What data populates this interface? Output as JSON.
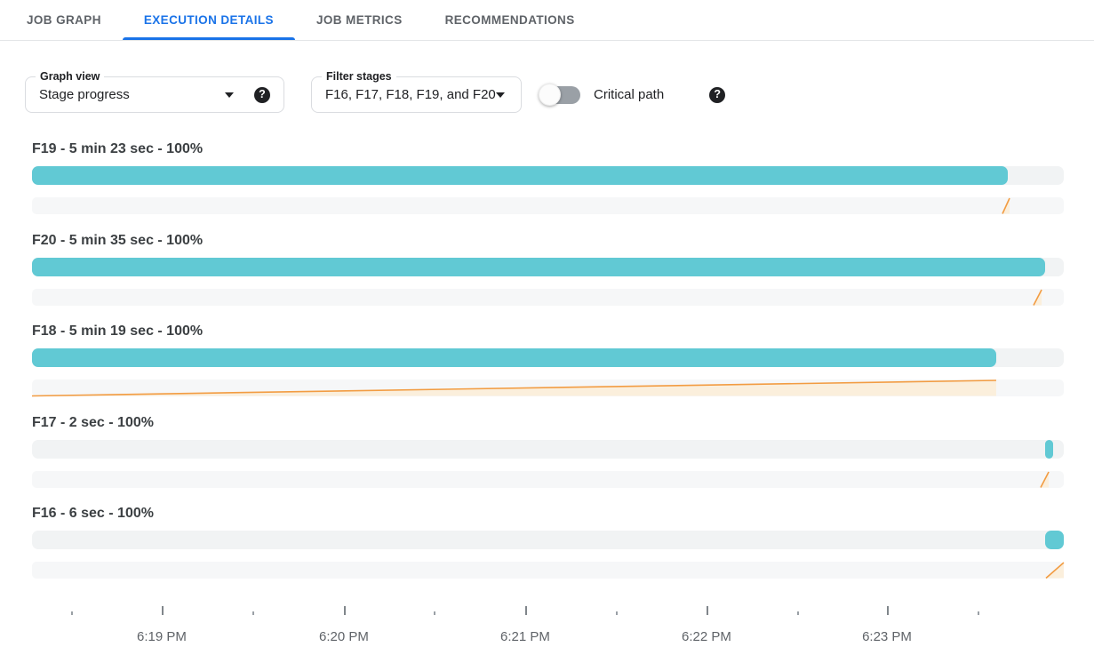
{
  "header": {
    "tabs": [
      {
        "label": "JOB GRAPH",
        "active": false
      },
      {
        "label": "EXECUTION DETAILS",
        "active": true
      },
      {
        "label": "JOB METRICS",
        "active": false
      },
      {
        "label": "RECOMMENDATIONS",
        "active": false
      }
    ]
  },
  "controls": {
    "graph_view": {
      "label": "Graph view",
      "value": "Stage progress"
    },
    "filter_stages": {
      "label": "Filter stages",
      "value": "F16, F17, F18, F19, and F20"
    },
    "critical_path": {
      "label": "Critical path",
      "enabled": false
    },
    "help_icon_glyph": "?"
  },
  "colors": {
    "accent_blue": "#1a73e8",
    "progress_teal": "#61c9d4",
    "track_gray": "#f1f3f4",
    "ramp_line_orange": "#f29c42",
    "ramp_fill_cream": "#fbefdc",
    "toggle_track_gray": "#9aa0a6"
  },
  "chart_data": {
    "type": "bar",
    "title": "Stage progress",
    "subtitle": "Dataflow execution details: per-stage progress bars over time with worker-activity ramps",
    "legend_position": "none",
    "grid": false,
    "stages": [
      {
        "id": "F19",
        "title": "F19 - 5 min 23 sec - 100%",
        "duration": "5 min 23 sec",
        "percent": 100,
        "progress_bar": {
          "start_pct": 0,
          "end_pct": 94.57
        },
        "activity_ramp": {
          "start_pct": 94.06,
          "end_pct": 94.75
        }
      },
      {
        "id": "F20",
        "title": "F20 - 5 min 35 sec - 100%",
        "duration": "5 min 35 sec",
        "percent": 100,
        "progress_bar": {
          "start_pct": 0,
          "end_pct": 98.19
        },
        "activity_ramp": {
          "start_pct": 97.07,
          "end_pct": 97.85
        }
      },
      {
        "id": "F18",
        "title": "F18 - 5 min 19 sec - 100%",
        "duration": "5 min 19 sec",
        "percent": 100,
        "progress_bar": {
          "start_pct": 0,
          "end_pct": 93.45
        },
        "activity_ramp": {
          "start_pct": 0,
          "end_pct": 93.45
        }
      },
      {
        "id": "F17",
        "title": "F17 - 2 sec - 100%",
        "duration": "2 sec",
        "percent": 100,
        "progress_bar": {
          "start_pct": 98.19,
          "end_pct": 98.97
        },
        "activity_ramp": {
          "start_pct": 97.76,
          "end_pct": 98.54
        }
      },
      {
        "id": "F16",
        "title": "F16 - 6 sec - 100%",
        "duration": "6 sec",
        "percent": 100,
        "progress_bar": {
          "start_pct": 98.19,
          "end_pct": 100
        },
        "activity_ramp": {
          "start_pct": 98.28,
          "end_pct": 100
        }
      }
    ],
    "x_axis": {
      "unit": "time of day",
      "major_ticks": [
        {
          "pos_pct": 12.57,
          "label": "6:19 PM"
        },
        {
          "pos_pct": 30.23,
          "label": "6:20 PM"
        },
        {
          "pos_pct": 47.8,
          "label": "6:21 PM"
        },
        {
          "pos_pct": 65.37,
          "label": "6:22 PM"
        },
        {
          "pos_pct": 82.86,
          "label": "6:23 PM"
        }
      ],
      "minor_ticks_pct": [
        3.79,
        21.36,
        38.93,
        56.59,
        74.16,
        91.65
      ]
    }
  }
}
